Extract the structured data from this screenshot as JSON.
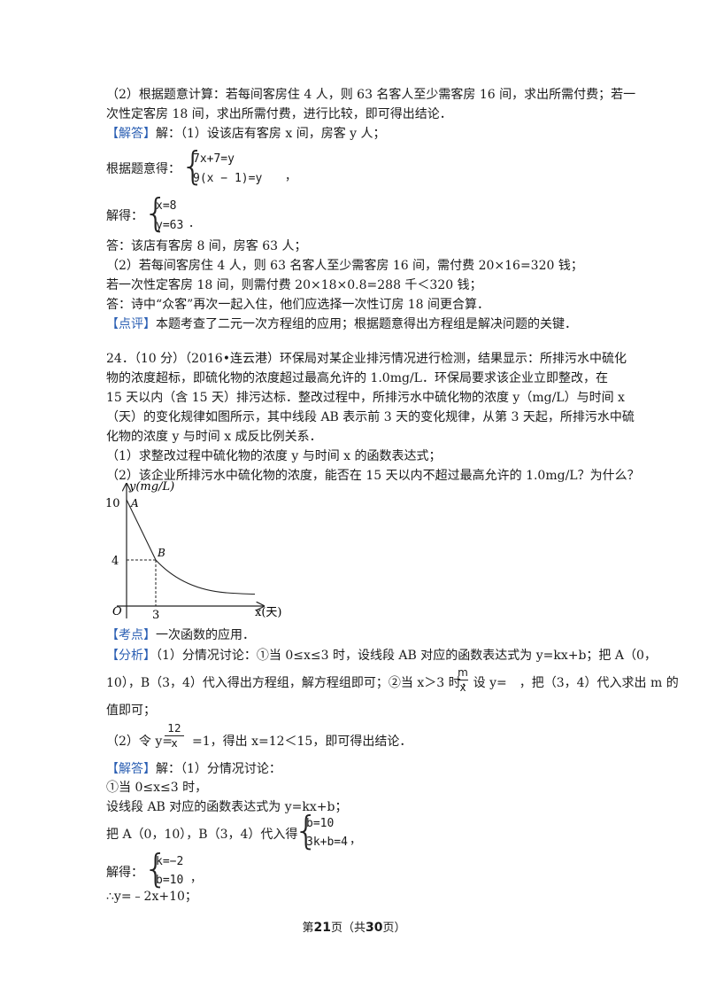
{
  "top": {
    "l1": "（2）根据题意计算：若每间客房住 4 人，则 63 名客人至少需客房 16 间，求出所需付费；若一",
    "l2": "次性定客房 18 间，求出所需付费，进行比较，即可得出结论．",
    "answer_tag": "【解答】",
    "answer_text": "解：（1）设该店有客房 x 间，房客 y 人；",
    "eq_prefix": "根据题意得：",
    "eq1": "7x+7=y",
    "eq2": "9(x − 1)=y",
    "eq_suffix": "，",
    "sol_prefix": "解得：",
    "sol1": "x=8",
    "sol2": "y=63",
    "sol_suffix": "．",
    "ans1": "答：该店有客房 8 间，房客 63 人；",
    "ans2": "（2）若每间客房住 4 人，则 63 名客人至少需客房 16 间，需付费 20×16=320 钱；",
    "ans3": "若一次性定客房 18 间，则需付费 20×18×0.8=288 千＜320 钱；",
    "ans4": "答：诗中“众客”再次一起入住，他们应选择一次性订房 18 间更合算．",
    "comment_tag": "【点评】",
    "comment_text": "本题考查了二元一次方程组的应用；根据题意得出方程组是解决问题的关键．"
  },
  "q24": {
    "l1": "24．（10 分）（2016•连云港）环保局对某企业排污情况进行检测，结果显示：所排污水中硫化",
    "l2": "物的浓度超标，即硫化物的浓度超过最高允许的 1.0mg/L．环保局要求该企业立即整改，在",
    "l3": "15 天以内（含 15 天）排污达标．整改过程中，所排污水中硫化物的浓度 y（mg/L）与时间 x",
    "l4": "（天）的变化规律如图所示，其中线段 AB 表示前 3 天的变化规律，从第 3 天起，所排污水中硫",
    "l5": "化物的浓度 y 与时间 x 成反比例关系．",
    "p1": "（1）求整改过程中硫化物的浓度 y 与时间 x 的函数表达式；",
    "p2": "（2）该企业所排污水中硫化物的浓度，能否在 15 天以内不超过最高允许的 1.0mg/L？为什么？"
  },
  "graph": {
    "y_label": "y(mg/L)",
    "x_label": "x(天)",
    "origin": "O",
    "tick_y_10": "10",
    "tick_y_4": "4",
    "tick_x_3": "3",
    "point_a": "A",
    "point_b": "B"
  },
  "analysis": {
    "kd_tag": "【考点】",
    "kd_text": "一次函数的应用．",
    "fx_tag": "【分析】",
    "fx1": "（1）分情况讨论：①当 0≤x≤3 时，设线段 AB 对应的函数表达式为 y=kx+b；把 A（0，",
    "fx2a": "10），B（3，4）代入得出方程组，解方程组即可；②当 x＞3 时，设 y=",
    "fx2_num": "m",
    "fx2_den": "x",
    "fx2b": "，把（3，4）代入求出 m 的",
    "fx3": "值即可；",
    "fx4a": "（2）令 y=",
    "fx4_num": "12",
    "fx4_den": "x",
    "fx4b": "=1，得出 x=12＜15，即可得出结论．"
  },
  "solution": {
    "tag": "【解答】",
    "s0": "解：（1）分情况讨论：",
    "s1": "①当 0≤x≤3 时，",
    "s2": "设线段 AB 对应的函数表达式为 y=kx+b；",
    "s3_prefix": "把 A（0，10），B（3，4）代入得",
    "s3_eq1": "b=10",
    "s3_eq2": "3k+b=4",
    "s3_suffix": "，",
    "s4_prefix": "解得：",
    "s4_eq1": "k=−2",
    "s4_eq2": "b=10",
    "s4_suffix": "，",
    "s5": "∴y=﹣2x+10；"
  },
  "footer": {
    "pre": "第",
    "page": "21",
    "mid": "页（共",
    "total": "30",
    "post": "页）"
  }
}
